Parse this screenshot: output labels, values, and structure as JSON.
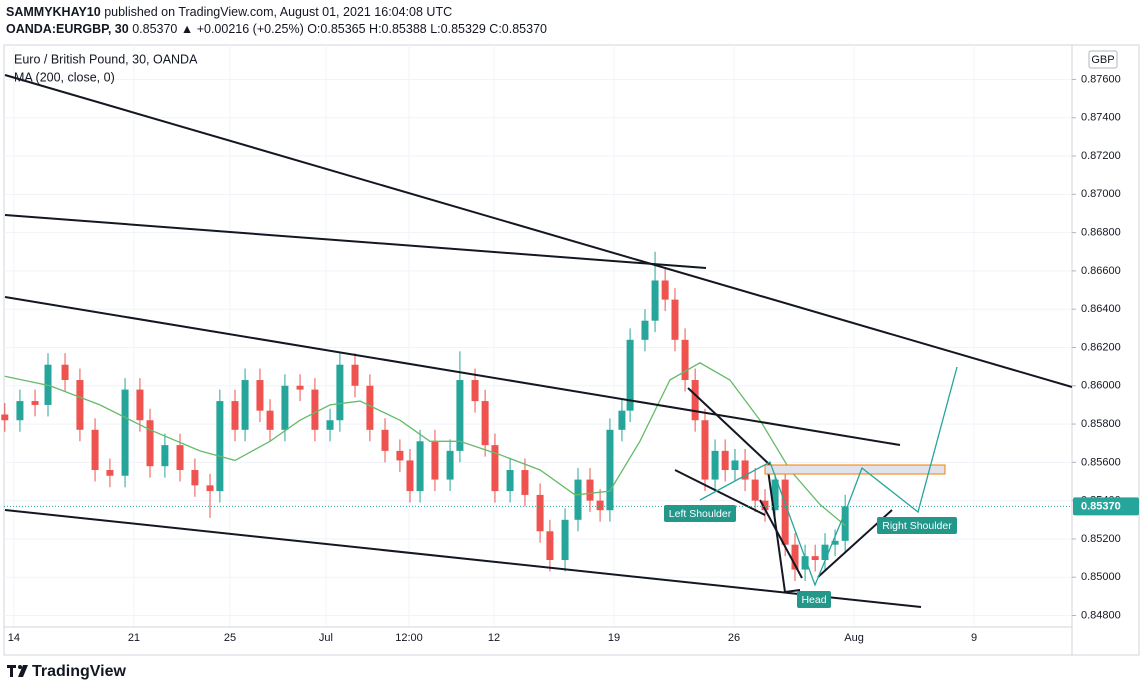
{
  "header": {
    "author": "SAMMYKHAY10",
    "published": "published on TradingView.com, August 01, 2021 16:04:08 UTC",
    "symbol": "OANDA:EURGBP, 30",
    "details": "0.85370 ▲ +0.00216 (+0.25%) O:0.85365 H:0.85388 L:0.85329 C:0.85370"
  },
  "footer": {
    "brand": "TradingView"
  },
  "chart_data": {
    "type": "candlestick",
    "title": "Euro / British Pound, 30, OANDA",
    "currency": "GBP",
    "up_color": "#26a69a",
    "down_color": "#ef5350",
    "x": [
      -0.38,
      0.25,
      0.88,
      1.42,
      2.13,
      2.75,
      3.38,
      4.0,
      4.63,
      5.25,
      5.67,
      6.29,
      6.92,
      7.54,
      8.17,
      8.58,
      9.21,
      9.63,
      10.25,
      10.67,
      11.29,
      11.92,
      12.54,
      13.17,
      13.58,
      14.21,
      14.83,
      15.46,
      16.08,
      16.5,
      16.92,
      17.54,
      18.17,
      18.58,
      19.21,
      19.63,
      20.04,
      20.67,
      21.29,
      21.92,
      22.33,
      22.96,
      23.5,
      24.0,
      24.42,
      24.83,
      25.33,
      25.67,
      26.29,
      26.71,
      27.13,
      27.54,
      27.96,
      28.38,
      28.79,
      29.21,
      29.63,
      30.04,
      30.46,
      30.88,
      31.29,
      31.71,
      32.13,
      32.54,
      32.96,
      33.38,
      33.79,
      34.21,
      34.63
    ],
    "open": [
      0.8585,
      0.8582,
      0.8592,
      0.859,
      0.8611,
      0.8603,
      0.8577,
      0.8556,
      0.8553,
      0.8598,
      0.8582,
      0.8558,
      0.8569,
      0.8556,
      0.8548,
      0.8545,
      0.8592,
      0.8577,
      0.8603,
      0.8587,
      0.8577,
      0.86,
      0.8598,
      0.8577,
      0.8582,
      0.8611,
      0.86,
      0.8577,
      0.8566,
      0.8561,
      0.8545,
      0.8571,
      0.8551,
      0.8566,
      0.8603,
      0.8592,
      0.8569,
      0.8545,
      0.8556,
      0.8543,
      0.8524,
      0.8509,
      0.853,
      0.8551,
      0.854,
      0.8535,
      0.8577,
      0.8587,
      0.8624,
      0.8634,
      0.8655,
      0.8645,
      0.8624,
      0.8603,
      0.8582,
      0.8551,
      0.8566,
      0.8556,
      0.8561,
      0.8551,
      0.854,
      0.8535,
      0.8551,
      0.8517,
      0.8504,
      0.8511,
      0.8509,
      0.8517,
      0.8519
    ],
    "high": [
      0.8591,
      0.8598,
      0.8598,
      0.8617,
      0.8617,
      0.8609,
      0.8583,
      0.8562,
      0.8604,
      0.8604,
      0.8588,
      0.8575,
      0.8575,
      0.8562,
      0.8554,
      0.8598,
      0.8598,
      0.8609,
      0.8609,
      0.8593,
      0.8606,
      0.8606,
      0.8604,
      0.8588,
      0.8617,
      0.8617,
      0.8606,
      0.8583,
      0.8572,
      0.8567,
      0.8577,
      0.8577,
      0.8572,
      0.8618,
      0.8609,
      0.8598,
      0.8575,
      0.8562,
      0.8562,
      0.8549,
      0.853,
      0.8536,
      0.8557,
      0.8557,
      0.8546,
      0.8583,
      0.8593,
      0.863,
      0.864,
      0.867,
      0.8661,
      0.8651,
      0.863,
      0.8609,
      0.8588,
      0.8572,
      0.8572,
      0.8567,
      0.8567,
      0.8557,
      0.8546,
      0.8557,
      0.8557,
      0.8523,
      0.8517,
      0.8517,
      0.8523,
      0.8525,
      0.8543
    ],
    "low": [
      0.8576,
      0.8576,
      0.8584,
      0.8584,
      0.8597,
      0.8571,
      0.855,
      0.8547,
      0.8547,
      0.8576,
      0.8552,
      0.8552,
      0.855,
      0.8542,
      0.8531,
      0.8539,
      0.8571,
      0.8571,
      0.8581,
      0.8571,
      0.8571,
      0.8592,
      0.8571,
      0.8571,
      0.8576,
      0.8594,
      0.8571,
      0.856,
      0.8555,
      0.8539,
      0.8539,
      0.8545,
      0.8545,
      0.856,
      0.8586,
      0.8563,
      0.8539,
      0.8539,
      0.8537,
      0.8518,
      0.8503,
      0.8503,
      0.8524,
      0.8534,
      0.8529,
      0.8529,
      0.8571,
      0.8581,
      0.8618,
      0.8628,
      0.8639,
      0.8618,
      0.8597,
      0.8576,
      0.8545,
      0.8545,
      0.855,
      0.855,
      0.8545,
      0.8534,
      0.8529,
      0.8529,
      0.8511,
      0.8498,
      0.8498,
      0.8503,
      0.8503,
      0.8511,
      0.8513
    ],
    "close": [
      0.8582,
      0.8592,
      0.859,
      0.8611,
      0.8603,
      0.8577,
      0.8556,
      0.8553,
      0.8598,
      0.8582,
      0.8558,
      0.8569,
      0.8556,
      0.8548,
      0.8545,
      0.8592,
      0.8577,
      0.8603,
      0.8587,
      0.8577,
      0.86,
      0.8598,
      0.8577,
      0.8582,
      0.8611,
      0.86,
      0.8577,
      0.8566,
      0.8561,
      0.8545,
      0.8571,
      0.8551,
      0.8566,
      0.8603,
      0.8592,
      0.8569,
      0.8545,
      0.8556,
      0.8543,
      0.8524,
      0.8509,
      0.853,
      0.8551,
      0.854,
      0.8535,
      0.8577,
      0.8587,
      0.8624,
      0.8634,
      0.8655,
      0.8645,
      0.8624,
      0.8603,
      0.8582,
      0.8551,
      0.8566,
      0.8556,
      0.8561,
      0.8551,
      0.854,
      0.8535,
      0.8551,
      0.8517,
      0.8504,
      0.8511,
      0.8509,
      0.8517,
      0.8519,
      0.8537
    ],
    "ma": {
      "name": "MA (200, close, 0)",
      "color": "#66bb6a",
      "x": [
        -0.38,
        1.5,
        3.58,
        5.67,
        7.75,
        9.21,
        10.67,
        11.92,
        13.17,
        14.42,
        16.08,
        17.33,
        18.58,
        20.25,
        21.92,
        23.38,
        24.83,
        26.08,
        27.33,
        28.58,
        29.83,
        31.08,
        32.33,
        33.58,
        34.63
      ],
      "values": [
        0.8605,
        0.86,
        0.859,
        0.8577,
        0.8566,
        0.8561,
        0.8571,
        0.8582,
        0.859,
        0.8592,
        0.8582,
        0.8571,
        0.8571,
        0.8564,
        0.8556,
        0.8543,
        0.8545,
        0.8571,
        0.8603,
        0.8612,
        0.8603,
        0.8582,
        0.8556,
        0.8538,
        0.8527
      ]
    },
    "annotations": [
      "Left Shoulder",
      "Head",
      "Right Shoulder"
    ],
    "last_price": {
      "value": 0.8537,
      "label": "0.85370"
    },
    "xlim": [
      -0.58,
      44.08
    ],
    "xticks": [
      {
        "value": 0,
        "label": "14"
      },
      {
        "value": 5,
        "label": "21"
      },
      {
        "value": 9,
        "label": "25"
      },
      {
        "value": 13,
        "label": "Jul"
      },
      {
        "value": 16.46,
        "label": "12:00"
      },
      {
        "value": 20,
        "label": "12"
      },
      {
        "value": 25,
        "label": "19"
      },
      {
        "value": 30,
        "label": "26"
      },
      {
        "value": 35,
        "label": "Aug"
      },
      {
        "value": 40,
        "label": "9"
      }
    ],
    "ylim": [
      0.8474,
      0.8778
    ],
    "yticks": [
      {
        "value": 0.848,
        "label": "0.84800"
      },
      {
        "value": 0.85,
        "label": "0.85000"
      },
      {
        "value": 0.852,
        "label": "0.85200"
      },
      {
        "value": 0.854,
        "label": "0.85400"
      },
      {
        "value": 0.856,
        "label": "0.85600"
      },
      {
        "value": 0.858,
        "label": "0.85800"
      },
      {
        "value": 0.86,
        "label": "0.86000"
      },
      {
        "value": 0.862,
        "label": "0.86200"
      },
      {
        "value": 0.864,
        "label": "0.86400"
      },
      {
        "value": 0.866,
        "label": "0.86600"
      },
      {
        "value": 0.868,
        "label": "0.86800"
      },
      {
        "value": 0.87,
        "label": "0.87000"
      },
      {
        "value": 0.872,
        "label": "0.87200"
      },
      {
        "value": 0.874,
        "label": "0.87400"
      },
      {
        "value": 0.876,
        "label": "0.87600"
      }
    ],
    "grid": true
  }
}
